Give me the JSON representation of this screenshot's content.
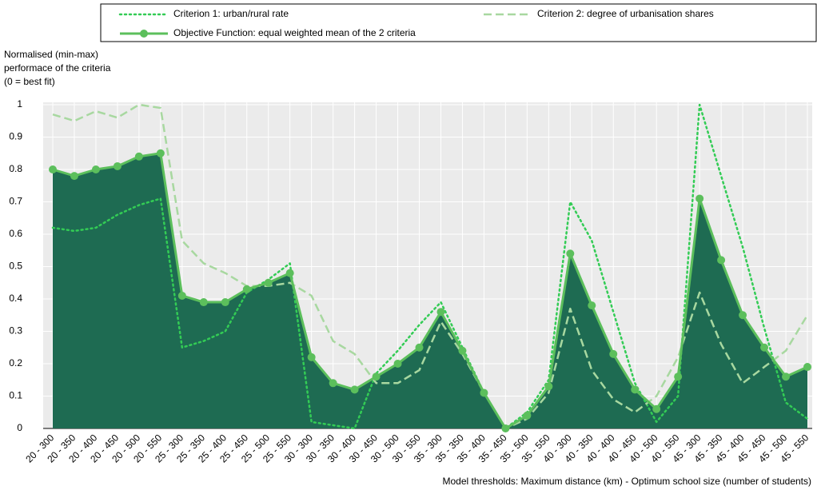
{
  "chart_data": {
    "type": "line",
    "ylabel": [
      "Normalised (min-max)",
      "performace of the criteria",
      "(0 = best fit)"
    ],
    "xlabel": "Model thresholds: Maximum distance (km) - Optimum school size (number of students)",
    "categories": [
      "20 - 300",
      "20 - 350",
      "20 - 400",
      "20 - 450",
      "20 - 500",
      "20 - 550",
      "25 - 300",
      "25 - 350",
      "25 - 400",
      "25 - 450",
      "25 - 500",
      "25 - 550",
      "30 - 300",
      "30 - 350",
      "30 - 400",
      "30 - 450",
      "30 - 500",
      "30 - 550",
      "35 - 300",
      "35 - 350",
      "35 - 400",
      "35 - 450",
      "35 - 500",
      "35 - 550",
      "40 - 300",
      "40 - 350",
      "40 - 400",
      "40 - 450",
      "40 - 500",
      "40 - 550",
      "45 - 300",
      "45 - 350",
      "45 - 400",
      "45 - 450",
      "45 - 500",
      "45 - 550"
    ],
    "series": [
      {
        "name": "Criterion 1: urban/rural rate",
        "color": "#33cc55",
        "dash": "dotted",
        "values": [
          0.62,
          0.61,
          0.62,
          0.66,
          0.69,
          0.71,
          0.25,
          0.27,
          0.3,
          0.42,
          0.46,
          0.51,
          0.02,
          0.01,
          0.0,
          0.17,
          0.24,
          0.32,
          0.39,
          0.25,
          0.11,
          0.0,
          0.05,
          0.15,
          0.7,
          0.58,
          0.36,
          0.14,
          0.02,
          0.1,
          1.0,
          0.78,
          0.56,
          0.31,
          0.08,
          0.03
        ]
      },
      {
        "name": "Criterion 2: degree of urbanisation shares",
        "color": "#a8d8a0",
        "dash": "dashed",
        "values": [
          0.97,
          0.95,
          0.98,
          0.96,
          1.0,
          0.99,
          0.58,
          0.51,
          0.48,
          0.44,
          0.44,
          0.45,
          0.41,
          0.27,
          0.23,
          0.14,
          0.14,
          0.18,
          0.33,
          0.23,
          0.11,
          0.0,
          0.03,
          0.11,
          0.37,
          0.18,
          0.09,
          0.05,
          0.1,
          0.22,
          0.42,
          0.26,
          0.14,
          0.19,
          0.24,
          0.35
        ]
      },
      {
        "name": "Objective Function: equal weighted mean of the 2 criteria",
        "color": "#5cbf5c",
        "dash": "solid",
        "markers": true,
        "fill": "#1e6b52",
        "values": [
          0.8,
          0.78,
          0.8,
          0.81,
          0.84,
          0.85,
          0.41,
          0.39,
          0.39,
          0.43,
          0.45,
          0.48,
          0.22,
          0.14,
          0.12,
          0.16,
          0.2,
          0.25,
          0.36,
          0.24,
          0.11,
          0.0,
          0.04,
          0.13,
          0.54,
          0.38,
          0.23,
          0.12,
          0.06,
          0.16,
          0.71,
          0.52,
          0.35,
          0.25,
          0.16,
          0.19
        ]
      }
    ],
    "ylim": [
      0,
      1
    ],
    "yticks": [
      0,
      0.1,
      0.2,
      0.3,
      0.4,
      0.5,
      0.6,
      0.7,
      0.8,
      0.9,
      1
    ],
    "grid": true
  }
}
